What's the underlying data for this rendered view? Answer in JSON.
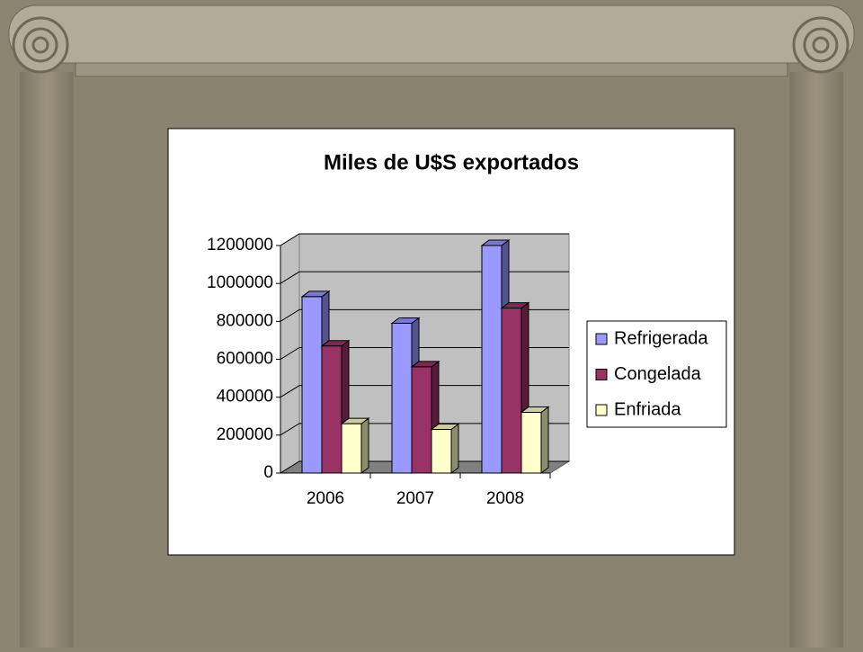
{
  "chart_data": {
    "type": "bar3d",
    "title": "Miles de U$S exportados",
    "categories": [
      "2006",
      "2007",
      "2008"
    ],
    "series": [
      {
        "name": "Refrigerada",
        "color": "#9999ff",
        "values": [
          930000,
          790000,
          1200000
        ]
      },
      {
        "name": "Congelada",
        "color": "#993366",
        "values": [
          670000,
          560000,
          870000
        ]
      },
      {
        "name": "Enfriada",
        "color": "#ffffcc",
        "values": [
          260000,
          230000,
          320000
        ]
      }
    ],
    "ylim": [
      0,
      1200000
    ],
    "yticks": [
      0,
      200000,
      400000,
      600000,
      800000,
      1000000,
      1200000
    ],
    "grid": true,
    "legend": "right"
  }
}
